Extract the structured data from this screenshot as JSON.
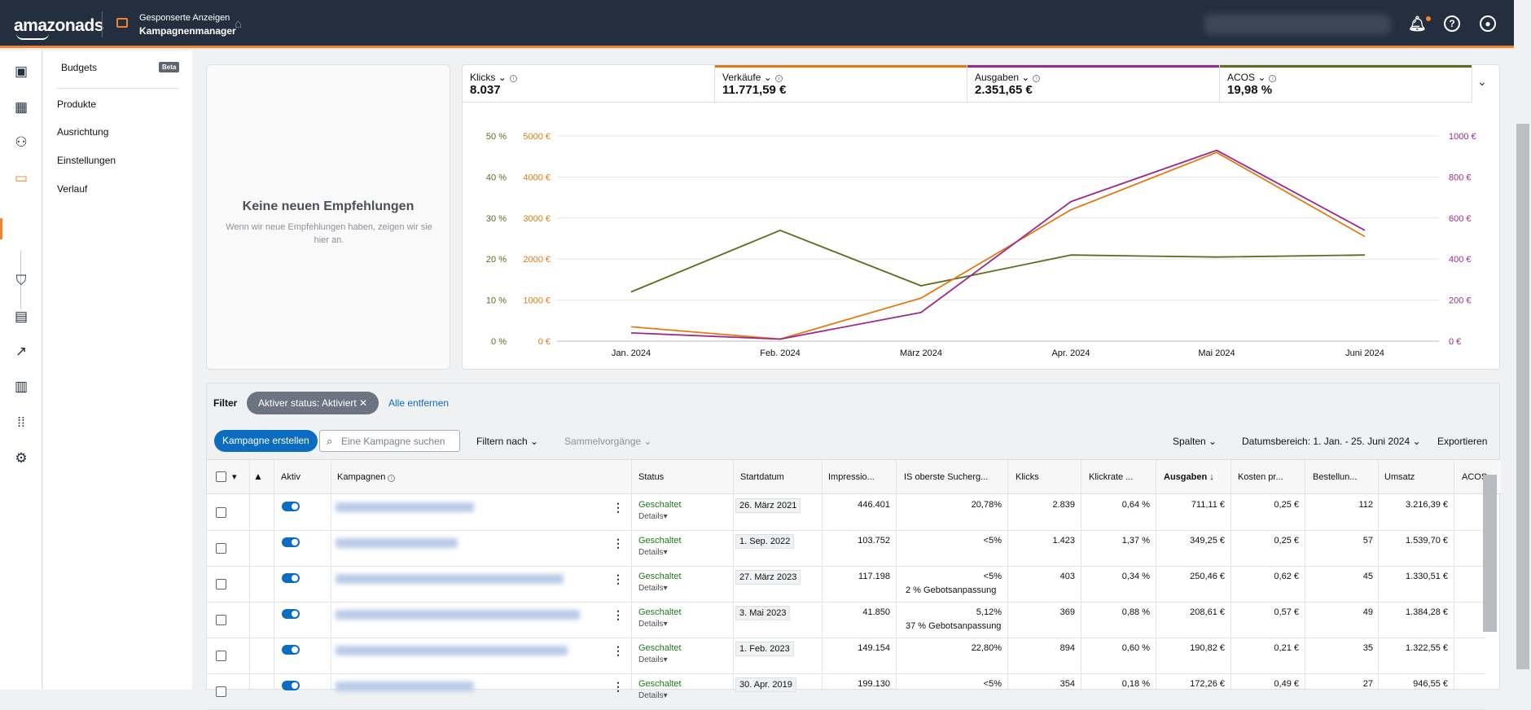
{
  "header": {
    "logo": "amazonads",
    "breadcrumb_top": "Gesponserte Anzeigen",
    "breadcrumb_bottom": "Kampagnenmanager"
  },
  "subnav": {
    "budgets": "Budgets",
    "beta": "Beta",
    "items": [
      "Produkte",
      "Ausrichtung",
      "Einstellungen",
      "Verlauf"
    ]
  },
  "recommendations": {
    "title": "Keine neuen Empfehlungen",
    "subtitle": "Wenn wir neue Empfehlungen haben, zeigen wir sie hier an."
  },
  "metrics": [
    {
      "label": "Klicks",
      "value": "8.037",
      "color": ""
    },
    {
      "label": "Verkäufe",
      "value": "11.771,59 €",
      "color": "#e47911"
    },
    {
      "label": "Ausgaben",
      "value": "2.351,65 €",
      "color": "#9c2a8c"
    },
    {
      "label": "ACOS",
      "value": "19,98 %",
      "color": "#5a6e1e"
    }
  ],
  "chart_data": {
    "type": "line",
    "x": [
      "Jan. 2024",
      "Feb. 2024",
      "März 2024",
      "Apr. 2024",
      "Mai 2024",
      "Juni 2024"
    ],
    "y_left_percent_ticks": [
      "0 %",
      "10 %",
      "20 %",
      "30 %",
      "40 %",
      "50 %"
    ],
    "y_left_euro_ticks": [
      "0 €",
      "1000 €",
      "2000 €",
      "3000 €",
      "4000 €",
      "5000 €"
    ],
    "y_right_euro_ticks": [
      "0 €",
      "200 €",
      "400 €",
      "600 €",
      "800 €",
      "1000 €"
    ],
    "ylim_percent": [
      0,
      50
    ],
    "ylim_verkaeufe": [
      0,
      5000
    ],
    "ylim_ausgaben": [
      0,
      1000
    ],
    "grid": true,
    "series": [
      {
        "name": "ACOS",
        "color": "#5a6e1e",
        "axis": "percent",
        "values": [
          12,
          27,
          13.5,
          21,
          20.5,
          21
        ]
      },
      {
        "name": "Verkäufe",
        "color": "#e47911",
        "axis": "verkaeufe",
        "values": [
          350,
          50,
          1050,
          3200,
          4600,
          2550
        ]
      },
      {
        "name": "Ausgaben",
        "color": "#9c2a8c",
        "axis": "ausgaben",
        "values": [
          40,
          10,
          140,
          680,
          930,
          540
        ]
      }
    ]
  },
  "filter": {
    "label": "Filter",
    "chip": "Aktiver status: Aktiviert",
    "clear": "Alle entfernen"
  },
  "toolbar": {
    "create": "Kampagne erstellen",
    "search_placeholder": "Eine Kampagne suchen",
    "filter_by": "Filtern nach",
    "bulk": "Sammelvorgänge",
    "columns": "Spalten",
    "date_range": "Datumsbereich: 1. Jan. - 25. Juni 2024",
    "export": "Exportieren"
  },
  "table": {
    "headers": {
      "active": "Aktiv",
      "campaigns": "Kampagnen",
      "status": "Status",
      "start": "Startdatum",
      "impressions": "Impressio...",
      "is_top": "IS oberste Sucherg...",
      "clicks": "Klicks",
      "ctr": "Klickrate ...",
      "spend": "Ausgaben",
      "cpc": "Kosten pr...",
      "orders": "Bestellun...",
      "sales": "Umsatz",
      "acos": "ACOS"
    },
    "status_text": "Geschaltet",
    "details_text": "Details",
    "rows": [
      {
        "start": "26. März 2021",
        "impr": "446.401",
        "is": "20,78%",
        "is_sub_pct": "",
        "is_sub": "",
        "clicks": "2.839",
        "ctr": "0,64 %",
        "spend": "711,11 €",
        "cpc": "0,25 €",
        "orders": "112",
        "sales": "3.216,39 €"
      },
      {
        "start": "1. Sep. 2022",
        "impr": "103.752",
        "is": "<5%",
        "is_sub_pct": "",
        "is_sub": "",
        "clicks": "1.423",
        "ctr": "1,37 %",
        "spend": "349,25 €",
        "cpc": "0,25 €",
        "orders": "57",
        "sales": "1.539,70 €"
      },
      {
        "start": "27. März 2023",
        "impr": "117.198",
        "is": "<5%",
        "is_sub_pct": "2 %",
        "is_sub": "Gebotsanpassung",
        "clicks": "403",
        "ctr": "0,34 %",
        "spend": "250,46 €",
        "cpc": "0,62 €",
        "orders": "45",
        "sales": "1.330,51 €"
      },
      {
        "start": "3. Mai 2023",
        "impr": "41.850",
        "is": "5,12%",
        "is_sub_pct": "37 %",
        "is_sub": "Gebotsanpassung",
        "clicks": "369",
        "ctr": "0,88 %",
        "spend": "208,61 €",
        "cpc": "0,57 €",
        "orders": "49",
        "sales": "1.384,28 €"
      },
      {
        "start": "1. Feb. 2023",
        "impr": "149.154",
        "is": "22,80%",
        "is_sub_pct": "",
        "is_sub": "",
        "clicks": "894",
        "ctr": "0,60 %",
        "spend": "190,82 €",
        "cpc": "0,21 €",
        "orders": "35",
        "sales": "1.322,55 €"
      },
      {
        "start": "30. Apr. 2019",
        "impr": "199.130",
        "is": "<5%",
        "is_sub_pct": "",
        "is_sub": "",
        "clicks": "354",
        "ctr": "0,18 %",
        "spend": "172,26 €",
        "cpc": "0,49 €",
        "orders": "27",
        "sales": "946,55 €"
      }
    ]
  }
}
